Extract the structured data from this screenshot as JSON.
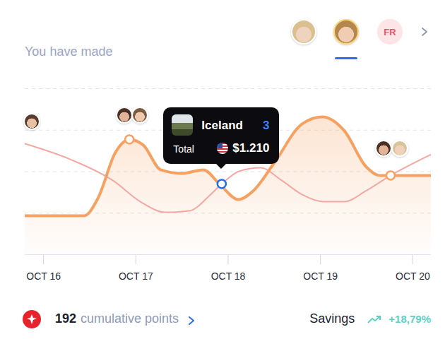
{
  "chart_data": {
    "type": "line",
    "subtitle": "You have made",
    "xlim": [
      15.8,
      20.2
    ],
    "xticks": [
      {
        "value": 16,
        "label": "OCT 16"
      },
      {
        "value": 17,
        "label": "OCT 17"
      },
      {
        "value": 18,
        "label": "OCT 18"
      },
      {
        "value": 19,
        "label": "OCT 19"
      },
      {
        "value": 20,
        "label": "OCT 20"
      }
    ],
    "ylim": [
      0,
      100
    ],
    "yticks": [
      0,
      25,
      50,
      75,
      100
    ],
    "grid": true,
    "tick_labels": "x",
    "series": [
      {
        "type": "area",
        "color": "#f5a162",
        "x": [
          15.8,
          16.44,
          16.59,
          16.78,
          16.93,
          17.08,
          17.27,
          17.5,
          17.73,
          17.92,
          18.11,
          18.27,
          18.5,
          18.8,
          19.02,
          19.26,
          19.49,
          19.64,
          19.76,
          20.2
        ],
        "values": [
          23.4,
          23.4,
          34,
          61.7,
          69.4,
          66,
          51.1,
          48.9,
          51.1,
          41.7,
          33.2,
          38.3,
          55.3,
          78.7,
          83,
          74.5,
          53.2,
          47.7,
          47.7,
          47.7
        ]
      },
      {
        "type": "line",
        "color": "#f4a8a3",
        "x": [
          15.8,
          16.29,
          16.75,
          17.05,
          17.32,
          17.58,
          17.81,
          17.93,
          18.12,
          18.35,
          18.58,
          18.8,
          19.03,
          19.26,
          19.49,
          19.76,
          20.2
        ],
        "values": [
          66.8,
          57.4,
          44.7,
          31.9,
          25.5,
          26.4,
          36.2,
          42.6,
          50.2,
          52.3,
          44.7,
          36.2,
          31.9,
          31.9,
          38.3,
          47.7,
          60.4
        ]
      }
    ],
    "markers": [
      {
        "x": 16.93,
        "y": 69.4,
        "color": "#f5a162"
      },
      {
        "x": 19.76,
        "y": 47.7,
        "color": "#f5a162"
      },
      {
        "x": 17.93,
        "y": 42.6,
        "color": "#1e6ff1"
      }
    ],
    "annotations": [
      {
        "x": 17.93,
        "y": 42.6,
        "title": "Iceland",
        "count": 3,
        "label": "Total",
        "value": 1210,
        "value_label": "$1.210"
      }
    ]
  },
  "header": {
    "badge": "FR"
  },
  "footer": {
    "points": {
      "value": 192,
      "label": "cumulative points"
    },
    "savings": {
      "label": "Savings",
      "value": 18.79,
      "value_label": "+18,79%"
    }
  }
}
